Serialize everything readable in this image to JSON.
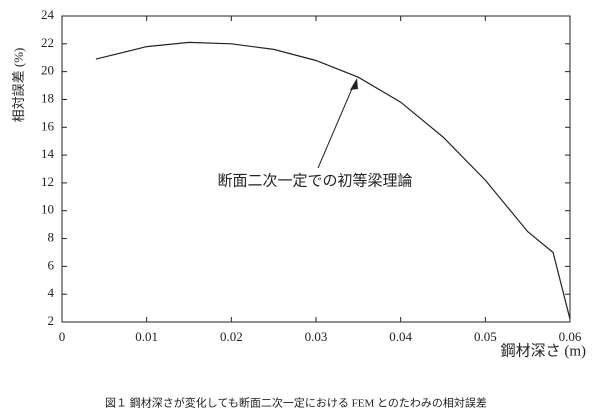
{
  "chart_data": {
    "type": "line",
    "ylabel": "相対誤差 (%)",
    "xlabel": "鋼材深さ (m)",
    "annotation": "断面二次一定での初等梁理論",
    "caption": "図１ 鋼材深さが変化しても断面二次一定における FEM とのたわみの相対誤差",
    "x": [
      0.004,
      0.01,
      0.015,
      0.02,
      0.025,
      0.03,
      0.035,
      0.04,
      0.045,
      0.05,
      0.055,
      0.058,
      0.06
    ],
    "series": [
      {
        "color": "#222222",
        "values": [
          20.9,
          21.8,
          22.1,
          22.0,
          21.6,
          20.8,
          19.6,
          17.8,
          15.3,
          12.2,
          8.5,
          7.0,
          2.2
        ]
      }
    ],
    "xlim": [
      0,
      0.06
    ],
    "xticks": [
      0,
      0.01,
      0.02,
      0.03,
      0.04,
      0.05,
      0.06
    ],
    "ylim": [
      2,
      24
    ],
    "yticks": [
      2,
      4,
      6,
      8,
      10,
      12,
      14,
      16,
      18,
      20,
      22,
      24
    ]
  }
}
